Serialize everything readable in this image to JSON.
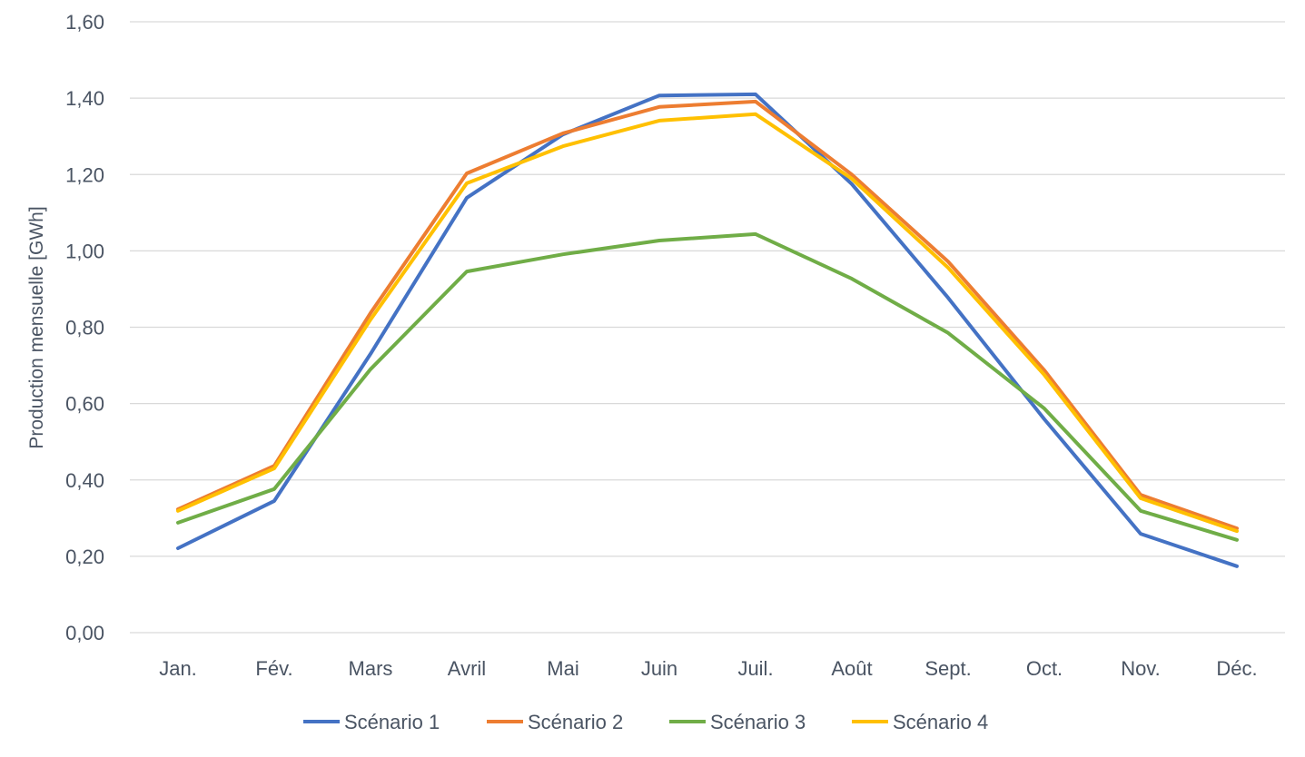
{
  "chart_data": {
    "type": "line",
    "title": "",
    "xlabel": "",
    "ylabel": "Production mensuelle [GWh]",
    "ylim": [
      0,
      1.6
    ],
    "yticks": [
      "0,00",
      "0,20",
      "0,40",
      "0,60",
      "0,80",
      "1,00",
      "1,20",
      "1,40",
      "1,60"
    ],
    "ytick_values": [
      0,
      0.2,
      0.4,
      0.6,
      0.8,
      1.0,
      1.2,
      1.4,
      1.6
    ],
    "grid": true,
    "legend_position": "bottom",
    "categories": [
      "Jan.",
      "Fév.",
      "Mars",
      "Avril",
      "Mai",
      "Juin",
      "Juil.",
      "Août",
      "Sept.",
      "Oct.",
      "Nov.",
      "Déc."
    ],
    "series": [
      {
        "name": "Scénario 1",
        "color": "#4472C4",
        "values": [
          0.221,
          0.345,
          0.73,
          1.139,
          1.305,
          1.407,
          1.41,
          1.175,
          0.877,
          0.559,
          0.259,
          0.174
        ]
      },
      {
        "name": "Scénario 2",
        "color": "#ED7D31",
        "values": [
          0.323,
          0.437,
          0.837,
          1.203,
          1.308,
          1.377,
          1.391,
          1.2,
          0.972,
          0.687,
          0.361,
          0.273
        ]
      },
      {
        "name": "Scénario 3",
        "color": "#70AD47",
        "values": [
          0.288,
          0.376,
          0.69,
          0.946,
          0.991,
          1.027,
          1.044,
          0.927,
          0.785,
          0.587,
          0.319,
          0.243
        ]
      },
      {
        "name": "Scénario 4",
        "color": "#FFC000",
        "values": [
          0.319,
          0.43,
          0.82,
          1.177,
          1.274,
          1.341,
          1.358,
          1.189,
          0.956,
          0.675,
          0.352,
          0.266
        ]
      }
    ]
  }
}
